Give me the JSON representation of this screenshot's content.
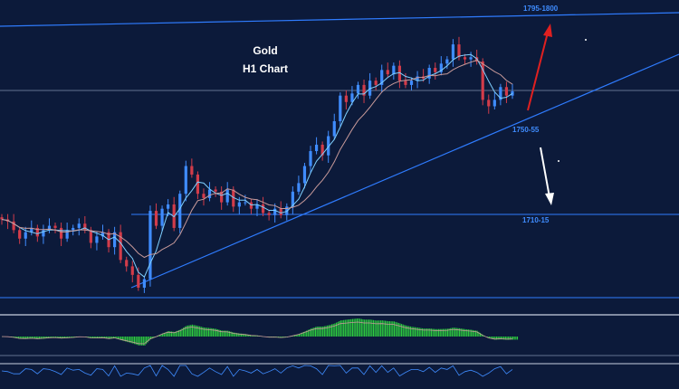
{
  "chart_data": {
    "type": "candlestick",
    "title": "Gold",
    "subtitle": "H1 Chart",
    "colors": {
      "background": "#0c1a3a",
      "candle_up": "#3f8cff",
      "candle_down": "#d23c4a",
      "level_line": "#2f7cff",
      "grid_line": "#7f8fae",
      "ma_fast": "#7fd0ff",
      "ma_slow": "#c89a9a",
      "macd_hist": "#2ecc40",
      "arrow_up": "#e02020",
      "arrow_down": "#ffffff"
    },
    "levels": [
      {
        "label": "1795-1800",
        "kind": "resistance"
      },
      {
        "label": "1750-55",
        "kind": "trendline-support"
      },
      {
        "label": "1710-15",
        "kind": "support"
      }
    ],
    "closes": [
      1712,
      1711,
      1707,
      1703,
      1706,
      1708,
      1704,
      1707,
      1709,
      1708,
      1703,
      1707,
      1708,
      1710,
      1707,
      1701,
      1704,
      1706,
      1699,
      1706,
      1693,
      1690,
      1686,
      1680,
      1684,
      1716,
      1709,
      1717,
      1719,
      1708,
      1724,
      1737,
      1733,
      1724,
      1722,
      1726,
      1725,
      1720,
      1726,
      1718,
      1720,
      1720,
      1717,
      1719,
      1715,
      1714,
      1717,
      1714,
      1718,
      1725,
      1729,
      1737,
      1744,
      1747,
      1742,
      1751,
      1758,
      1770,
      1767,
      1771,
      1775,
      1770,
      1777,
      1775,
      1782,
      1780,
      1784,
      1777,
      1775,
      1777,
      1779,
      1778,
      1783,
      1781,
      1785,
      1787,
      1794,
      1788,
      1787,
      1788,
      1786,
      1768,
      1765,
      1768,
      1774,
      1770,
      1772
    ]
  }
}
